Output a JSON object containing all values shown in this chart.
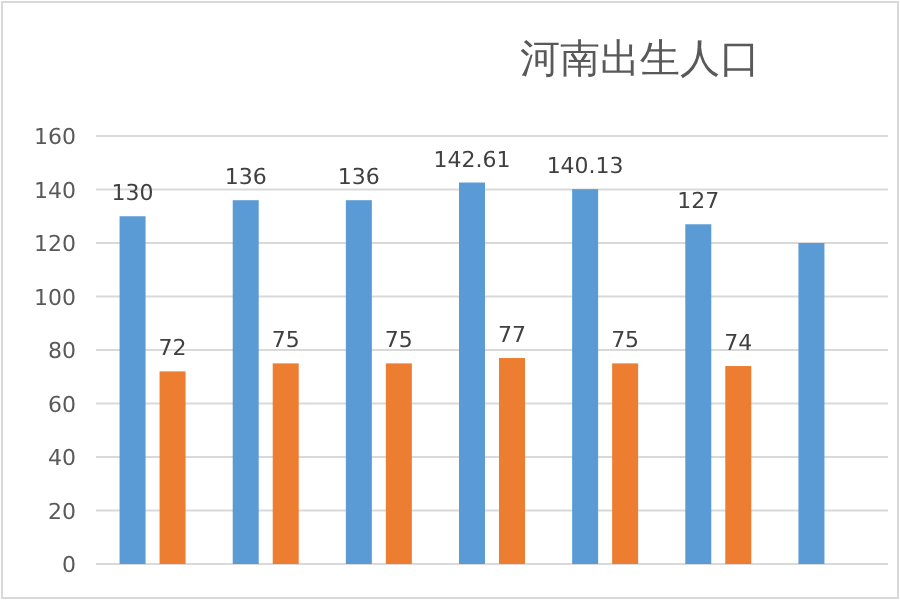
{
  "chart_data": {
    "type": "bar",
    "title": "河南出生人口",
    "categories": [
      null,
      null,
      null,
      null,
      null,
      null,
      null
    ],
    "series": [
      {
        "color": "#5b9bd5",
        "values": [
          130,
          136,
          136,
          142.61,
          140.13,
          127,
          120
        ],
        "value_labels": [
          "130",
          "136",
          "136",
          "142.61",
          "140.13",
          "127",
          null
        ]
      },
      {
        "color": "#ed7d31",
        "values": [
          72,
          75,
          75,
          77,
          75,
          74,
          null
        ],
        "value_labels": [
          "72",
          "75",
          "75",
          "77",
          "75",
          "74",
          null
        ]
      }
    ],
    "ylim": [
      0,
      160
    ],
    "yticks": [
      0,
      20,
      40,
      60,
      80,
      100,
      120,
      140,
      160
    ],
    "grid": "y"
  }
}
